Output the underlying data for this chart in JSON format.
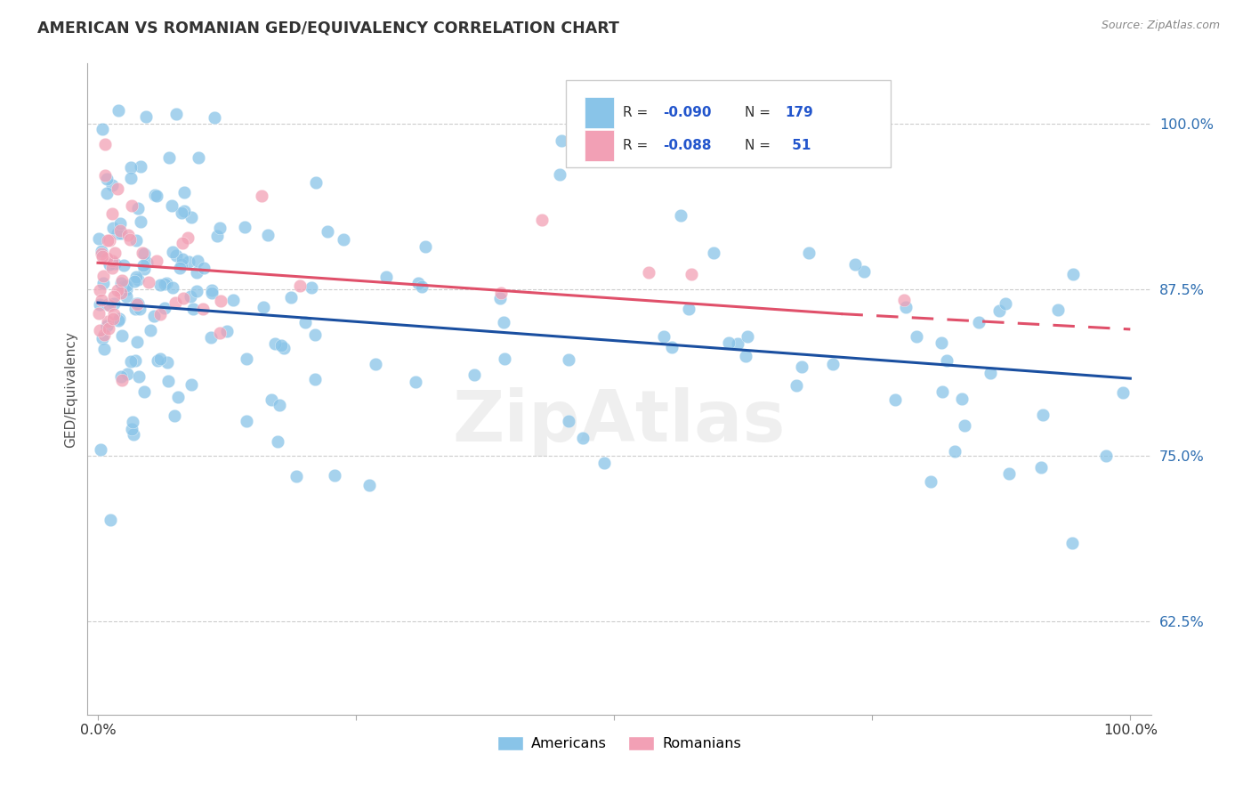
{
  "title": "AMERICAN VS ROMANIAN GED/EQUIVALENCY CORRELATION CHART",
  "source": "Source: ZipAtlas.com",
  "ylabel": "GED/Equivalency",
  "xlim": [
    -0.01,
    1.02
  ],
  "ylim": [
    0.555,
    1.045
  ],
  "yticks": [
    0.625,
    0.75,
    0.875,
    1.0
  ],
  "ytick_labels": [
    "62.5%",
    "75.0%",
    "87.5%",
    "100.0%"
  ],
  "xticks": [
    0.0,
    0.25,
    0.5,
    0.75,
    1.0
  ],
  "xtick_labels": [
    "0.0%",
    "",
    "",
    "",
    "100.0%"
  ],
  "american_color": "#89C4E8",
  "romanian_color": "#F2A0B5",
  "american_line_color": "#1A4FA0",
  "romanian_line_color": "#E0506A",
  "watermark": "ZipAtlas",
  "background_color": "#ffffff",
  "grid_color": "#cccccc",
  "title_color": "#333333",
  "source_color": "#888888",
  "ylabel_color": "#555555",
  "ytick_color": "#2B6CB0",
  "xtick_color": "#333333",
  "legend_r_color": "#333333",
  "legend_val_color": "#2255CC",
  "legend_box_edge": "#cccccc"
}
